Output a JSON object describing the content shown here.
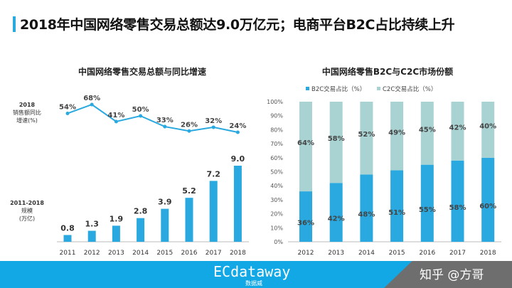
{
  "header": {
    "title": "2018年中国网络零售交易总额达9.0万亿元；电商平台B2C占比持续上升"
  },
  "colors": {
    "accent": "#29a9e0",
    "b2c": "#29a9e0",
    "c2c": "#a9d3d3",
    "footer": "#12a8e6"
  },
  "footer": {
    "logo": "ECdataway",
    "logo_sub": "数据威",
    "watermark": "知乎 @方哥"
  },
  "chart_data": [
    {
      "type": "bar+line",
      "title": "中国网络零售交易总额与同比增速",
      "categories": [
        "2011",
        "2012",
        "2013",
        "2014",
        "2015",
        "2016",
        "2017",
        "2018"
      ],
      "line_label": "2018\n销售额同比\n增速(%)",
      "line_label_lines": [
        "2018",
        "销售额同比",
        "增速(%)"
      ],
      "bar_label_lines": [
        "2011-2018",
        "规模",
        "(万亿)"
      ],
      "growth_pct": [
        54,
        68,
        41,
        50,
        33,
        26,
        32,
        24
      ],
      "growth_labels": [
        "54%",
        "68%",
        "41%",
        "50%",
        "33%",
        "26%",
        "32%",
        "24%"
      ],
      "scale": [
        0.8,
        1.3,
        1.9,
        2.8,
        3.9,
        5.2,
        7.2,
        9.0
      ],
      "scale_labels": [
        "0.8",
        "1.3",
        "1.9",
        "2.8",
        "3.9",
        "5.2",
        "7.2",
        "9.0"
      ]
    },
    {
      "type": "stacked-bar",
      "title": "中国网络零售B2C与C2C市场份额",
      "categories": [
        "2012",
        "2013",
        "2014",
        "2015",
        "2016",
        "2017",
        "2018"
      ],
      "yticks": [
        "0%",
        "10%",
        "20%",
        "30%",
        "40%",
        "50%",
        "60%",
        "70%",
        "80%",
        "90%",
        "100%"
      ],
      "ylim": [
        0,
        100
      ],
      "legend_position": "top",
      "series": [
        {
          "name": "B2C交易占比（%）",
          "values": [
            36,
            42,
            48,
            51,
            55,
            58,
            60
          ],
          "labels": [
            "36%",
            "42%",
            "48%",
            "51%",
            "55%",
            "58%",
            "60%"
          ]
        },
        {
          "name": "C2C交易占比（%）",
          "values": [
            64,
            58,
            52,
            49,
            45,
            42,
            40
          ],
          "labels": [
            "64%",
            "58%",
            "52%",
            "49%",
            "45%",
            "42%",
            "40%"
          ]
        }
      ]
    }
  ]
}
